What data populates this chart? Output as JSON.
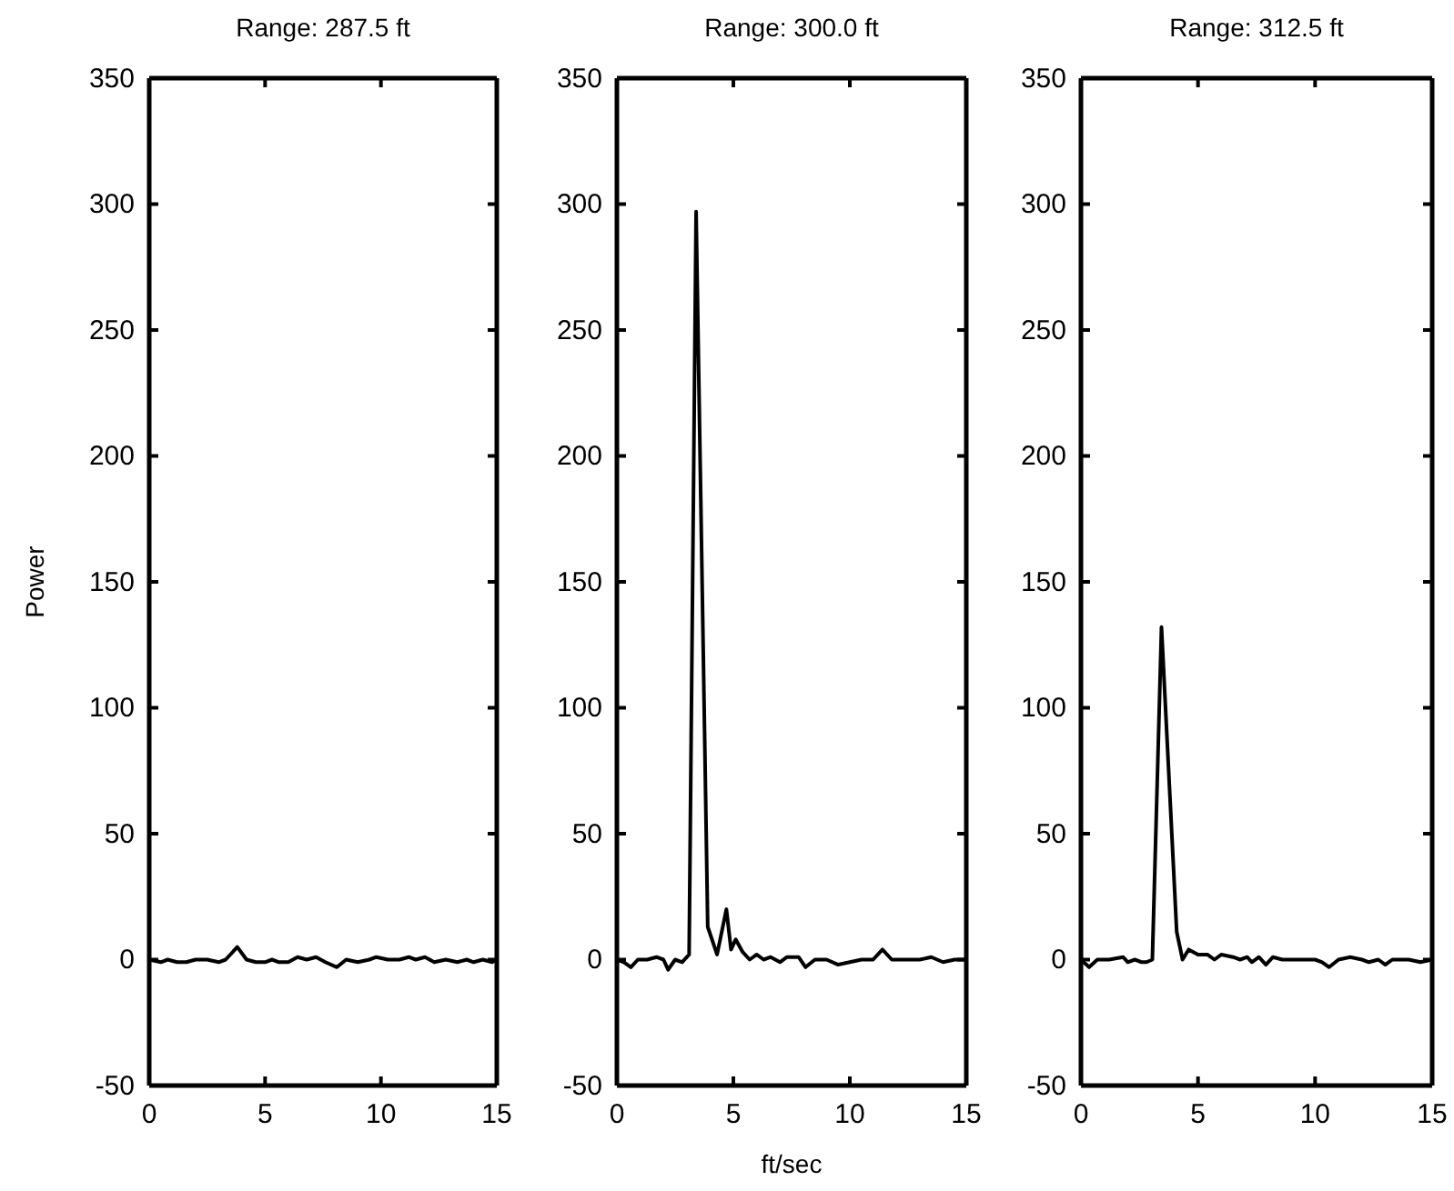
{
  "chart_data": [
    {
      "type": "line",
      "title": "Range: 287.5 ft",
      "ylabel": "Power",
      "xlim": [
        0,
        15
      ],
      "xticks": [
        0,
        5,
        10,
        15
      ],
      "ylim": [
        -50,
        350
      ],
      "yticks": [
        -50,
        0,
        50,
        100,
        150,
        200,
        250,
        300,
        350
      ],
      "grid": false,
      "line_style": "solid",
      "marker": "none",
      "series": [
        {
          "color": "#000000",
          "x": [
            0,
            0.5,
            0.8,
            1.2,
            1.6,
            2,
            2.5,
            3,
            3.3,
            3.8,
            4.2,
            4.6,
            5,
            5.3,
            5.6,
            6,
            6.4,
            6.8,
            7.2,
            7.6,
            8.1,
            8.5,
            9,
            9.5,
            9.8,
            10.3,
            10.8,
            11.2,
            11.5,
            11.9,
            12.3,
            12.8,
            13.3,
            13.7,
            14,
            14.4,
            14.8,
            15
          ],
          "values": [
            0,
            -1,
            0,
            -1,
            -1,
            0,
            0,
            -1,
            0,
            5,
            0,
            -1,
            -1,
            0,
            -1,
            -1,
            1,
            0,
            1,
            -1,
            -3,
            0,
            -1,
            0,
            1,
            0,
            0,
            1,
            0,
            1,
            -1,
            0,
            -1,
            0,
            -1,
            0,
            -1,
            0
          ]
        }
      ]
    },
    {
      "type": "line",
      "title": "Range: 300.0 ft",
      "xlabel": "ft/sec",
      "xlim": [
        0,
        15
      ],
      "xticks": [
        0,
        5,
        10,
        15
      ],
      "ylim": [
        -50,
        350
      ],
      "yticks": [
        -50,
        0,
        50,
        100,
        150,
        200,
        250,
        300,
        350
      ],
      "grid": false,
      "line_style": "solid",
      "marker": "none",
      "series": [
        {
          "color": "#000000",
          "x": [
            0,
            0.3,
            0.6,
            0.9,
            1.3,
            1.7,
            2,
            2.2,
            2.5,
            2.8,
            3.1,
            3.4,
            3.9,
            4.3,
            4.7,
            4.9,
            5.1,
            5.4,
            5.7,
            6,
            6.3,
            6.6,
            7,
            7.3,
            7.8,
            8.1,
            8.5,
            9,
            9.5,
            10,
            10.5,
            11,
            11.4,
            11.8,
            12.5,
            13,
            13.5,
            14,
            14.5,
            15
          ],
          "values": [
            0,
            -1,
            -3,
            0,
            0,
            1,
            0,
            -4,
            0,
            -1,
            2,
            297,
            13,
            2,
            20,
            4,
            8,
            3,
            0,
            2,
            0,
            1,
            -1,
            1,
            1,
            -3,
            0,
            0,
            -2,
            -1,
            0,
            0,
            4,
            0,
            0,
            0,
            1,
            -1,
            0,
            0
          ]
        }
      ]
    },
    {
      "type": "line",
      "title": "Range: 312.5 ft",
      "xlim": [
        0,
        15
      ],
      "xticks": [
        0,
        5,
        10,
        15
      ],
      "ylim": [
        -50,
        350
      ],
      "yticks": [
        -50,
        0,
        50,
        100,
        150,
        200,
        250,
        300,
        350
      ],
      "grid": false,
      "line_style": "solid",
      "marker": "none",
      "series": [
        {
          "color": "#000000",
          "x": [
            0,
            0.35,
            0.7,
            1.2,
            1.8,
            2,
            2.3,
            2.6,
            2.8,
            3.05,
            3.44,
            4.09,
            4.34,
            4.6,
            5,
            5.4,
            5.7,
            6,
            6.5,
            6.8,
            7.1,
            7.3,
            7.6,
            7.9,
            8.2,
            8.6,
            9,
            9.6,
            10,
            10.3,
            10.6,
            11,
            11.5,
            12,
            12.3,
            12.7,
            13,
            13.3,
            14,
            14.5,
            15
          ],
          "values": [
            0,
            -3,
            0,
            0,
            1,
            -1,
            0,
            -1,
            -1,
            0,
            132,
            11,
            0,
            4,
            2,
            2,
            0,
            2,
            1,
            0,
            1,
            -1,
            1,
            -2,
            1,
            0,
            0,
            0,
            0,
            -1,
            -3,
            0,
            1,
            0,
            -1,
            0,
            -2,
            0,
            0,
            -1,
            0
          ]
        }
      ]
    }
  ]
}
